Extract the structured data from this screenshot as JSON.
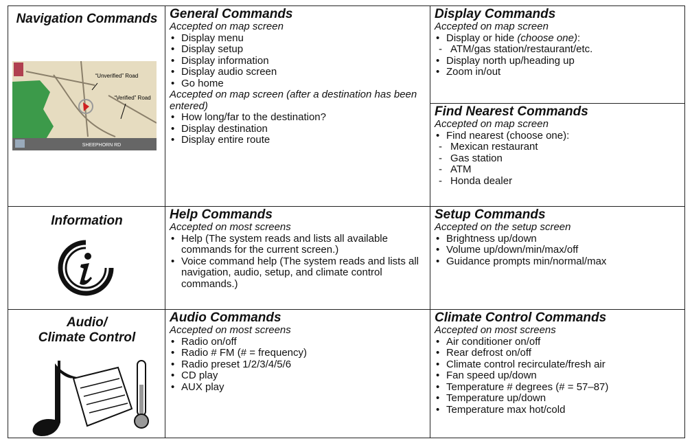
{
  "row_labels": [
    "Navigation Commands",
    "Information",
    "Audio/\nClimate Control"
  ],
  "map_labels": {
    "unverified": "“Unverified” Road",
    "verified": "“Verified” Road",
    "street": "SHEEPHORN RD"
  },
  "blocks": [
    {
      "title": "General Commands",
      "groups": [
        {
          "accepted": "Accepted on map screen",
          "items": [
            "Display menu",
            "Display setup",
            "Display information",
            "Display audio screen",
            "Go home"
          ]
        },
        {
          "accepted": "Accepted on map screen (after a destination has been entered)",
          "items": [
            "How long/far to the destination?",
            "Display destination",
            "Display entire route"
          ]
        }
      ]
    },
    {
      "title": "Display Commands",
      "groups": [
        {
          "accepted": "Accepted on map screen",
          "items": [
            {
              "text": "Display or hide",
              "note": "(choose one)",
              "suffix": ":",
              "sub": [
                "ATM/gas station/restaurant/etc."
              ]
            },
            "Display north up/heading up",
            "Zoom in/out"
          ]
        }
      ]
    },
    {
      "title": "Find Nearest Commands",
      "groups": [
        {
          "accepted": "Accepted on map screen",
          "items": [
            {
              "text": "Find nearest (choose one):",
              "sub": [
                "Mexican restaurant",
                "Gas station",
                "ATM",
                "Honda dealer"
              ]
            }
          ]
        }
      ]
    },
    {
      "title": "Help Commands",
      "groups": [
        {
          "accepted": "Accepted on most screens",
          "items": [
            "Help (The system reads and lists all available commands for the current screen.)",
            "Voice command help (The system reads and lists all navigation, audio, setup, and climate control commands.)"
          ]
        }
      ]
    },
    {
      "title": "Setup Commands",
      "groups": [
        {
          "accepted": "Accepted on the setup screen",
          "items": [
            "Brightness up/down",
            "Volume up/down/min/max/off",
            "Guidance prompts min/normal/max"
          ]
        }
      ]
    },
    {
      "title": "Audio Commands",
      "groups": [
        {
          "accepted": "Accepted on most screens",
          "items": [
            "Radio on/off",
            "Radio # FM (# = frequency)",
            "Radio preset 1/2/3/4/5/6",
            "CD play",
            "AUX play"
          ]
        }
      ]
    },
    {
      "title": "Climate Control Commands",
      "groups": [
        {
          "accepted": "Accepted on most screens",
          "items": [
            "Air conditioner on/off",
            "Rear defrost on/off",
            "Climate control recirculate/fresh air",
            "Fan speed up/down",
            "Temperature # degrees (# = 57–87)",
            "Temperature up/down",
            "Temperature max hot/cold"
          ]
        }
      ]
    }
  ]
}
